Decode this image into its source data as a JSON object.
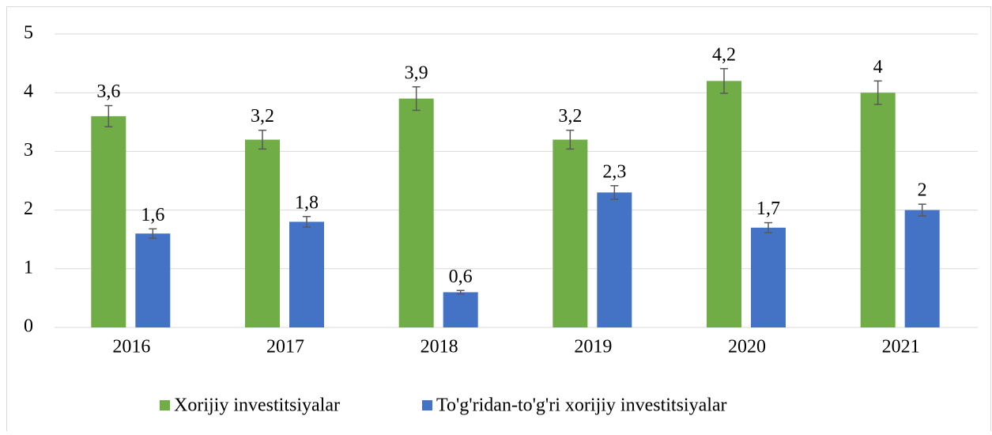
{
  "chart_data": {
    "type": "bar",
    "categories": [
      "2016",
      "2017",
      "2018",
      "2019",
      "2020",
      "2021"
    ],
    "series": [
      {
        "name": "Xorijiy investitsiyalar",
        "color": "#70ad47",
        "values": [
          3.6,
          3.2,
          3.9,
          3.2,
          4.2,
          4
        ],
        "value_labels": [
          "3,6",
          "3,2",
          "3,9",
          "3,2",
          "4,2",
          "4"
        ],
        "errors": [
          0.18,
          0.16,
          0.2,
          0.16,
          0.21,
          0.2
        ]
      },
      {
        "name": "To'g'ridan-to'g'ri xorijiy investitsiyalar",
        "color": "#4472c4",
        "values": [
          1.6,
          1.8,
          0.6,
          2.3,
          1.7,
          2
        ],
        "value_labels": [
          "1,6",
          "1,8",
          "0,6",
          "2,3",
          "1,7",
          "2"
        ],
        "errors": [
          0.08,
          0.09,
          0.03,
          0.115,
          0.085,
          0.1
        ]
      }
    ],
    "ylim": [
      0,
      5
    ],
    "yticks": [
      0,
      1,
      2,
      3,
      4,
      5
    ],
    "grid": true,
    "legend": "bottom"
  }
}
